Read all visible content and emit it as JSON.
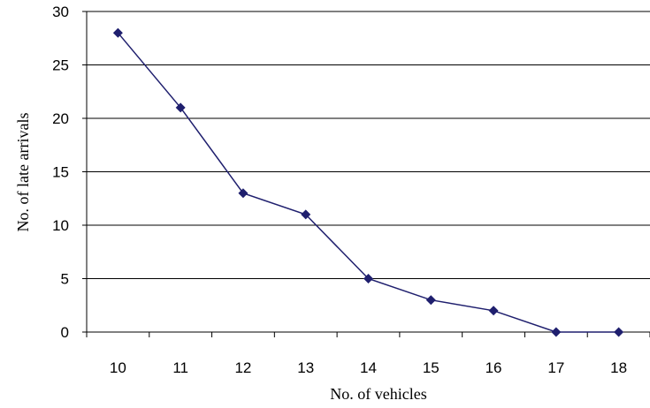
{
  "chart_data": {
    "type": "line",
    "title": "",
    "xlabel": "No.  of  vehicles",
    "ylabel": "No.  of  late  arrivals",
    "x": [
      10,
      11,
      12,
      13,
      14,
      15,
      16,
      17,
      18
    ],
    "categories": [
      "10",
      "11",
      "12",
      "13",
      "14",
      "15",
      "16",
      "17",
      "18"
    ],
    "series": [
      {
        "values": [
          28,
          21,
          13,
          11,
          5,
          3,
          2,
          0,
          0
        ]
      }
    ],
    "ylim": [
      0,
      30
    ],
    "yticks": [
      "0",
      "5",
      "10",
      "15",
      "20",
      "25",
      "30"
    ],
    "grid": "horizontal",
    "line_color": "#1f1f6e",
    "marker": "diamond"
  }
}
